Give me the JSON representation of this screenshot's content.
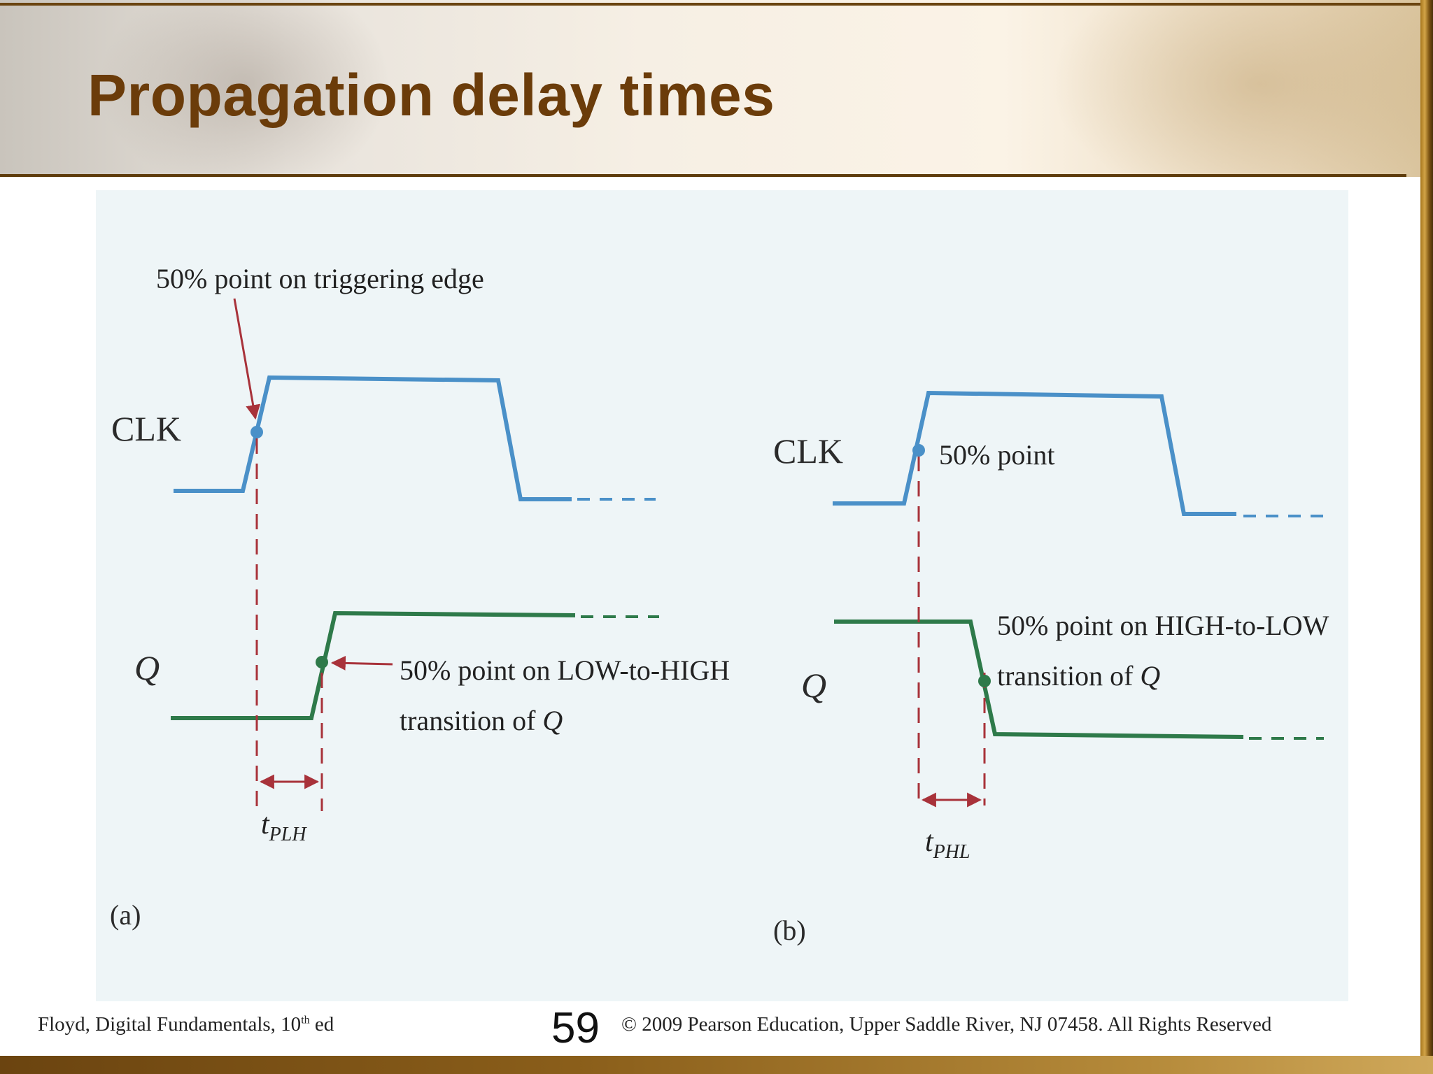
{
  "slide": {
    "title": "Propagation delay times",
    "footer": {
      "left_text": "Floyd, Digital Fundamentals, 10",
      "left_sup": "th",
      "left_suffix": " ed",
      "page_number": "59",
      "right_text": "© 2009 Pearson Education, Upper Saddle River, NJ 07458. All Rights Reserved"
    }
  },
  "figure": {
    "panel_a": {
      "panel_label": "(a)",
      "clk_label": "CLK",
      "q_label": "Q",
      "clk_annotation": "50% point on triggering edge",
      "q_annotation_line1": "50% point on LOW-to-HIGH",
      "q_annotation_line2_prefix": "transition of ",
      "q_annotation_line2_var": "Q",
      "delay_symbol": "t",
      "delay_subscript": "PLH"
    },
    "panel_b": {
      "panel_label": "(b)",
      "clk_label": "CLK",
      "q_label": "Q",
      "clk_annotation": "50% point",
      "q_annotation_line1": "50% point on HIGH-to-LOW",
      "q_annotation_line2_prefix": "transition of ",
      "q_annotation_line2_var": "Q",
      "delay_symbol": "t",
      "delay_subscript": "PHL"
    },
    "colors": {
      "clk_waveform": "#4a90c8",
      "q_waveform": "#2e7a4a",
      "marker_lines": "#a8323a",
      "annotation_arrow": "#a8323a"
    }
  }
}
